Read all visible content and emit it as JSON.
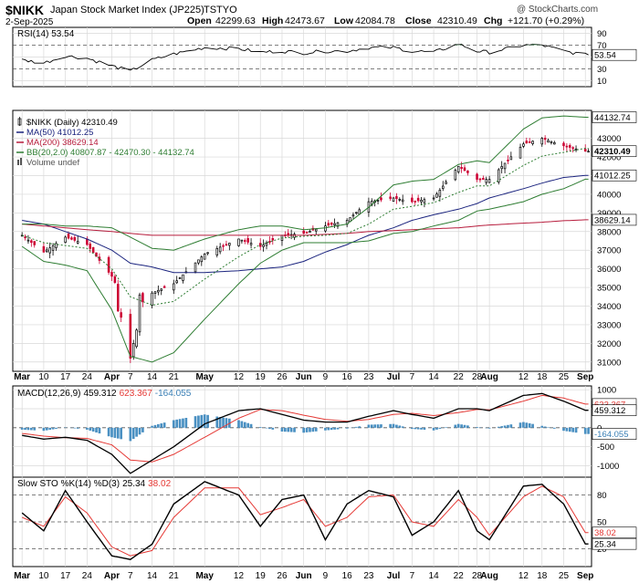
{
  "header": {
    "symbol": "$NIKK",
    "name": "Japan Stock Market Index (JP225)",
    "exchange": "TSTYO",
    "date": "2-Sep-2025",
    "watermark": "@ StockCharts.com",
    "open_label": "Open",
    "open": "42299.63",
    "high_label": "High",
    "high": "42473.67",
    "low_label": "Low",
    "low": "42084.78",
    "close_label": "Close",
    "close": "42310.49",
    "chg_label": "Chg",
    "chg": "+121.70 (+0.29%)"
  },
  "colors": {
    "up": "#000000",
    "down": "#cc0033",
    "ma50": "#1a237e",
    "ma200": "#b71c3c",
    "bb": "#2e7d32",
    "macd": "#000000",
    "signal": "#e53935",
    "hist": "#4a90c2",
    "sto_k": "#000000",
    "sto_d": "#e53935",
    "rsi_over": "#5f9e6e",
    "rsi_under": "#a05050"
  },
  "x_axis": {
    "months": [
      "Mar",
      "Apr",
      "May",
      "Jun",
      "Jul",
      "Aug",
      "Sep"
    ],
    "ticks": [
      {
        "label": "Mar",
        "date": "2025-03-03",
        "bold": true
      },
      {
        "label": "10",
        "date": "2025-03-10"
      },
      {
        "label": "17",
        "date": "2025-03-17"
      },
      {
        "label": "24",
        "date": "2025-03-24"
      },
      {
        "label": "Apr",
        "date": "2025-04-01",
        "bold": true
      },
      {
        "label": "7",
        "date": "2025-04-07"
      },
      {
        "label": "14",
        "date": "2025-04-14"
      },
      {
        "label": "21",
        "date": "2025-04-21"
      },
      {
        "label": "May",
        "date": "2025-05-01",
        "bold": true
      },
      {
        "label": "12",
        "date": "2025-05-12"
      },
      {
        "label": "19",
        "date": "2025-05-19"
      },
      {
        "label": "26",
        "date": "2025-05-26"
      },
      {
        "label": "Jun",
        "date": "2025-06-02",
        "bold": true
      },
      {
        "label": "9",
        "date": "2025-06-09"
      },
      {
        "label": "16",
        "date": "2025-06-16"
      },
      {
        "label": "23",
        "date": "2025-06-23"
      },
      {
        "label": "Jul",
        "date": "2025-07-01",
        "bold": true
      },
      {
        "label": "7",
        "date": "2025-07-07"
      },
      {
        "label": "14",
        "date": "2025-07-14"
      },
      {
        "label": "22",
        "date": "2025-07-22"
      },
      {
        "label": "28",
        "date": "2025-07-28"
      },
      {
        "label": "Aug",
        "date": "2025-08-01",
        "bold": true
      },
      {
        "label": "12",
        "date": "2025-08-12"
      },
      {
        "label": "18",
        "date": "2025-08-18"
      },
      {
        "label": "25",
        "date": "2025-08-25"
      },
      {
        "label": "Sep",
        "date": "2025-09-01",
        "bold": true
      }
    ]
  },
  "rsi_panel": {
    "label": "RSI(14) 53.54",
    "value": "53.54",
    "ticks": [
      "90",
      "70",
      "50",
      "30",
      "10"
    ],
    "tick_values": [
      90,
      70,
      50,
      30,
      10
    ]
  },
  "price_panel": {
    "legend": [
      {
        "symbol_text": "$NIKK (Daily) 42310.49",
        "color": "#000000",
        "icon": "candle-icon"
      },
      {
        "symbol_text": "MA(50) 41012.25",
        "color": "#1a237e",
        "icon": "line-icon"
      },
      {
        "symbol_text": "MA(200) 38629.14",
        "color": "#b71c3c",
        "icon": "line-icon"
      },
      {
        "symbol_text": "BB(20,2.0) 40807.87 - 42470.30 - 44132.74",
        "color": "#2e7d32",
        "icon": "line-icon"
      },
      {
        "symbol_text": "Volume undef",
        "color": "#555555",
        "icon": "volume-icon"
      }
    ],
    "ticks": [
      "43000",
      "42000",
      "41000",
      "40000",
      "39000",
      "38000",
      "37000",
      "36000",
      "35000",
      "34000",
      "33000",
      "32000",
      "31000"
    ],
    "tick_values": [
      43000,
      42000,
      41000,
      40000,
      39000,
      38000,
      37000,
      36000,
      35000,
      34000,
      33000,
      32000,
      31000
    ],
    "value_tags": [
      {
        "text": "44132.74",
        "value": 44132.74,
        "bold": false
      },
      {
        "text": "42310.49",
        "value": 42310.49,
        "bold": true
      },
      {
        "text": "41012.25",
        "value": 41012.25,
        "bold": false
      },
      {
        "text": "38629.14",
        "value": 38629.14,
        "bold": false
      }
    ]
  },
  "macd_panel": {
    "label_prefix": "MACD(12,26,9)",
    "macd": "459.312",
    "signal": "623.367",
    "hist": "-164.055",
    "ticks": [
      "1000",
      "500",
      "0",
      "-500",
      "-1000"
    ],
    "tick_values": [
      1000,
      500,
      0,
      -500,
      -1000
    ],
    "value_tags": [
      {
        "text": "623.367",
        "value": 623.367
      },
      {
        "text": "459.312",
        "value": 459.312
      },
      {
        "text": "-164.055",
        "value": -164.055
      }
    ]
  },
  "sto_panel": {
    "label_prefix": "Slow STO %K(14) %D(3)",
    "k": "25.34",
    "d": "38.02",
    "ticks": [
      "80",
      "50",
      "20"
    ],
    "tick_values": [
      80,
      50,
      20
    ],
    "value_tags": [
      {
        "text": "38.02",
        "value": 38.02
      },
      {
        "text": "25.34",
        "value": 25.34
      }
    ]
  },
  "chart_data": {
    "type": "candlestick",
    "title": "$NIKK Japan Stock Market Index (JP225) TSTYO",
    "ylim": [
      30500,
      44500
    ],
    "series": [
      {
        "name": "$NIKK (Daily)",
        "type": "candlestick",
        "x": [
          "2025-03-03",
          "2025-03-10",
          "2025-03-17",
          "2025-03-24",
          "2025-04-01",
          "2025-04-07",
          "2025-04-14",
          "2025-04-21",
          "2025-05-01",
          "2025-05-12",
          "2025-05-19",
          "2025-05-26",
          "2025-06-02",
          "2025-06-09",
          "2025-06-16",
          "2025-06-23",
          "2025-07-01",
          "2025-07-07",
          "2025-07-14",
          "2025-07-22",
          "2025-07-28",
          "2025-08-01",
          "2025-08-12",
          "2025-08-18",
          "2025-08-25",
          "2025-09-01"
        ],
        "close": [
          37800,
          36900,
          37700,
          37300,
          35600,
          33600,
          34700,
          35200,
          36800,
          37600,
          37200,
          37800,
          37900,
          38300,
          38600,
          39600,
          39800,
          39600,
          39800,
          41500,
          40800,
          40800,
          42700,
          43000,
          42600,
          42310
        ]
      },
      {
        "name": "MA(50)",
        "type": "line",
        "y": [
          38600,
          38400,
          38000,
          37600,
          37000,
          36300,
          36100,
          35800,
          35800,
          35900,
          36000,
          36100,
          36400,
          36900,
          37300,
          37800,
          38200,
          38600,
          38900,
          39200,
          39500,
          39800,
          40300,
          40600,
          40900,
          41012
        ]
      },
      {
        "name": "MA(200)",
        "type": "line",
        "y": [
          38400,
          38300,
          38200,
          38100,
          38000,
          37900,
          37800,
          37800,
          37800,
          37800,
          37800,
          37800,
          37800,
          37850,
          37900,
          38000,
          38050,
          38100,
          38150,
          38200,
          38300,
          38350,
          38450,
          38500,
          38580,
          38629
        ]
      },
      {
        "name": "BB upper",
        "type": "line",
        "y": [
          38400,
          38400,
          38300,
          38300,
          38200,
          37700,
          37100,
          37000,
          37600,
          38100,
          38300,
          38300,
          38100,
          38200,
          38400,
          39300,
          40500,
          40700,
          40800,
          41600,
          41800,
          41700,
          43500,
          44100,
          44200,
          44133
        ]
      },
      {
        "name": "BB lower",
        "type": "line",
        "y": [
          37200,
          36400,
          36200,
          35900,
          33800,
          31300,
          31000,
          31500,
          33300,
          35200,
          36300,
          37000,
          37400,
          37400,
          37400,
          37500,
          37900,
          38000,
          38300,
          38600,
          39100,
          39200,
          39600,
          40000,
          40300,
          40808
        ]
      }
    ],
    "macd": {
      "macd": 459.312,
      "signal": 623.367,
      "histogram": -164.055,
      "ylim": [
        -1300,
        1100
      ]
    },
    "stochastic": {
      "k": 25.34,
      "d": 38.02,
      "ylim": [
        0,
        100
      ]
    },
    "rsi": {
      "value": 53.54,
      "ylim": [
        0,
        100
      ]
    },
    "legend_position": "top-left",
    "grid": true
  }
}
